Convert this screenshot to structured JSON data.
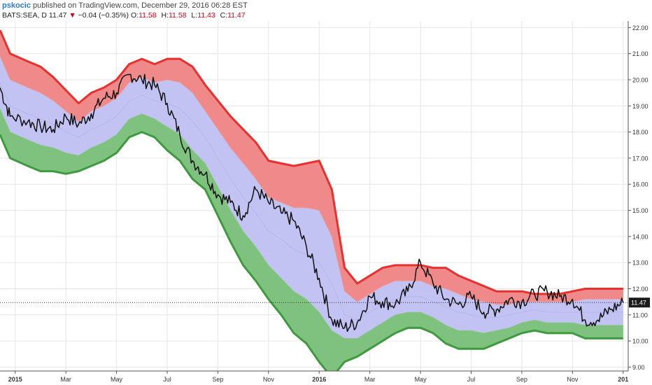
{
  "header": {
    "author": "pskocic",
    "published": "published on TradingView.com, December 29, 2016 06:28 EST",
    "symbol": "BATS:SEA, D",
    "last": "11.47",
    "change": "−0.04 (−0.35%)",
    "o_label": "O:",
    "o": "11.58",
    "h_label": "H:",
    "h": "11.58",
    "l_label": "L:",
    "l": "11.43",
    "c_label": "C:",
    "c": "11.47"
  },
  "colors": {
    "upper_band": "#f08a8a",
    "upper_line": "#e8302f",
    "middle_band": "#c3c3f3",
    "lower_band": "#7fc27f",
    "lower_line": "#3e9a3e",
    "price_line": "#111111",
    "grid": "#e6e6e6",
    "last_price_badge": "#1a1a1a"
  },
  "chart_data": {
    "type": "line",
    "x_ticks": [
      "2015",
      "Mar",
      "May",
      "Jul",
      "Sep",
      "Nov",
      "2016",
      "Mar",
      "May",
      "Jul",
      "Sep",
      "Nov",
      "201"
    ],
    "x_tick_months": [
      0,
      2,
      4,
      6,
      8,
      10,
      12,
      14,
      16,
      18,
      20,
      22,
      24
    ],
    "x_bold_ticks": [
      "2015",
      "2016",
      "201"
    ],
    "y_ticks": [
      "9.00",
      "10.00",
      "11.00",
      "12.00",
      "13.00",
      "14.00",
      "15.00",
      "16.00",
      "17.00",
      "18.00",
      "19.00",
      "20.00",
      "21.00",
      "22.00"
    ],
    "ylim": [
      8.85,
      22.25
    ],
    "xlim": [
      -0.6,
      24.2
    ],
    "last_price_label": "11.47",
    "last_price": 11.47,
    "grid": true,
    "x": [
      -0.6,
      -0.2,
      0.5,
      1.0,
      1.5,
      2.0,
      2.5,
      3.0,
      3.5,
      4.0,
      4.5,
      5.0,
      5.5,
      6.0,
      6.5,
      7.0,
      7.5,
      8.0,
      8.5,
      9.0,
      9.5,
      10.0,
      10.5,
      11.0,
      11.5,
      12.0,
      12.5,
      13.0,
      13.5,
      14.0,
      14.5,
      15.0,
      15.5,
      16.0,
      16.5,
      17.0,
      17.5,
      18.0,
      18.5,
      19.0,
      19.5,
      20.0,
      20.5,
      21.0,
      21.5,
      22.0,
      22.5,
      23.0,
      23.5,
      24.0
    ],
    "series": [
      {
        "values": [
          21.9,
          21.0,
          20.7,
          20.5,
          20.1,
          19.6,
          19.1,
          19.5,
          19.7,
          20.0,
          20.6,
          20.8,
          20.6,
          20.8,
          20.8,
          20.5,
          19.8,
          19.2,
          18.6,
          18.1,
          17.6,
          16.9,
          16.8,
          16.7,
          16.8,
          16.9,
          15.8,
          12.8,
          12.2,
          12.5,
          12.8,
          12.9,
          12.9,
          12.9,
          12.8,
          12.8,
          12.5,
          12.3,
          12.1,
          11.9,
          11.9,
          11.9,
          11.8,
          11.8,
          11.8,
          11.9,
          12.0,
          12.0,
          12.0,
          12.0
        ]
      },
      {
        "values": [
          20.9,
          20.0,
          19.7,
          19.5,
          19.2,
          18.8,
          18.4,
          18.8,
          19.0,
          19.3,
          19.9,
          20.1,
          19.9,
          20.0,
          19.9,
          19.5,
          18.8,
          18.1,
          17.4,
          16.8,
          16.2,
          15.5,
          15.3,
          15.1,
          15.1,
          15.0,
          14.0,
          11.9,
          11.5,
          11.8,
          12.1,
          12.3,
          12.3,
          12.3,
          12.1,
          12.0,
          11.8,
          11.6,
          11.5,
          11.4,
          11.4,
          11.5,
          11.5,
          11.5,
          11.5,
          11.5,
          11.6,
          11.6,
          11.6,
          11.6
        ]
      },
      {
        "values": [
          19.9,
          19.0,
          18.7,
          18.5,
          18.3,
          18.0,
          17.8,
          18.1,
          18.3,
          18.6,
          19.2,
          19.4,
          19.2,
          19.1,
          18.9,
          18.4,
          17.8,
          17.0,
          16.2,
          15.5,
          14.9,
          14.2,
          13.9,
          13.5,
          13.3,
          13.0,
          12.2,
          11.0,
          10.8,
          11.1,
          11.4,
          11.6,
          11.7,
          11.7,
          11.5,
          11.3,
          11.1,
          11.0,
          10.9,
          10.9,
          11.0,
          11.1,
          11.2,
          11.1,
          11.1,
          11.1,
          11.1,
          11.1,
          11.1,
          11.1
        ]
      },
      {
        "values": [
          18.9,
          18.0,
          17.7,
          17.5,
          17.4,
          17.2,
          17.1,
          17.4,
          17.6,
          17.9,
          18.5,
          18.7,
          18.5,
          18.2,
          17.9,
          17.3,
          16.8,
          15.9,
          15.0,
          14.2,
          13.6,
          12.9,
          12.4,
          11.9,
          11.6,
          11.1,
          10.4,
          10.1,
          10.1,
          10.4,
          10.7,
          11.0,
          11.1,
          11.1,
          10.9,
          10.6,
          10.4,
          10.4,
          10.3,
          10.4,
          10.5,
          10.7,
          10.8,
          10.7,
          10.7,
          10.7,
          10.6,
          10.6,
          10.6,
          10.6
        ]
      },
      {
        "values": [
          17.9,
          17.0,
          16.7,
          16.5,
          16.5,
          16.4,
          16.5,
          16.7,
          16.9,
          17.2,
          17.8,
          18.0,
          17.8,
          17.3,
          16.9,
          16.2,
          15.8,
          14.8,
          13.8,
          12.9,
          12.3,
          11.6,
          11.0,
          10.3,
          9.9,
          9.2,
          8.6,
          9.2,
          9.4,
          9.7,
          10.0,
          10.3,
          10.5,
          10.5,
          10.3,
          9.9,
          9.7,
          9.7,
          9.7,
          9.9,
          10.1,
          10.3,
          10.4,
          10.3,
          10.3,
          10.3,
          10.1,
          10.1,
          10.1,
          10.1
        ]
      },
      {
        "values": [
          19.7,
          18.6,
          18.4,
          18.2,
          18.1,
          18.6,
          18.3,
          18.7,
          19.3,
          19.5,
          20.2,
          20.0,
          19.8,
          19.1,
          17.9,
          16.9,
          16.4,
          15.6,
          15.3,
          14.8,
          15.8,
          15.3,
          14.9,
          14.6,
          13.6,
          12.4,
          10.8,
          10.5,
          10.7,
          11.7,
          11.5,
          11.4,
          11.9,
          13.0,
          12.2,
          11.6,
          11.4,
          11.7,
          11.1,
          11.2,
          11.6,
          11.5,
          11.8,
          11.9,
          11.7,
          11.6,
          10.8,
          10.8,
          11.2,
          11.47
        ]
      }
    ]
  }
}
